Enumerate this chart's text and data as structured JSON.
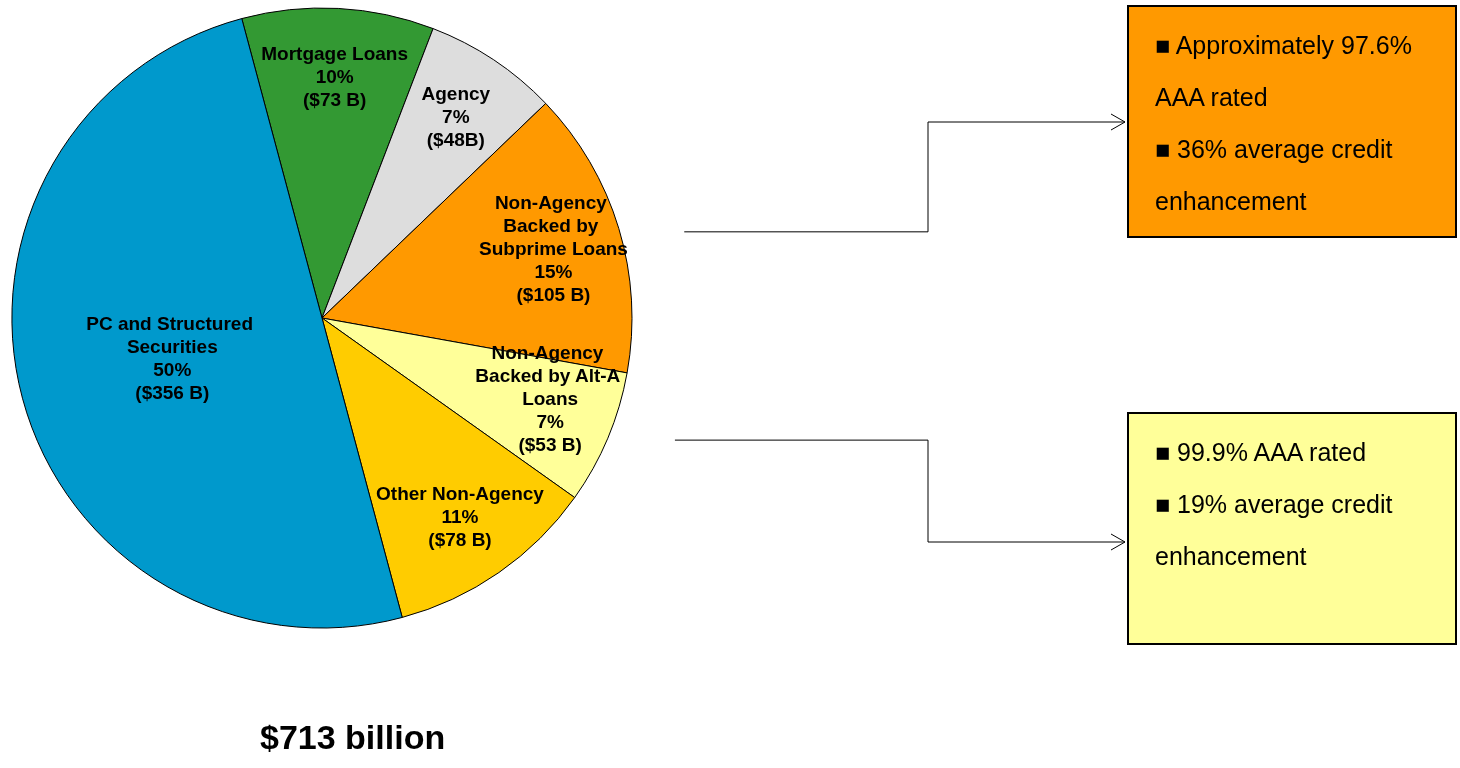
{
  "chart_data": {
    "type": "pie",
    "title": "$713 billion",
    "categories": [
      "Mortgage Loans",
      "Agency",
      "Non-Agency Backed by Subprime Loans",
      "Non-Agency Backed by Alt-A Loans",
      "Other Non-Agency",
      "PC and Structured Securities"
    ],
    "values": [
      10,
      7,
      15,
      7,
      11,
      50
    ],
    "value_labels": [
      "10%\n($73 B)",
      "7%\n($48B)",
      "15%\n($105 B)",
      "7%\n($53 B)",
      "11%\n($78 B)",
      "50%\n($356 B)"
    ],
    "colors": [
      "#339933",
      "#dddddd",
      "#ff9900",
      "#ffff99",
      "#ffcc00",
      "#0099cc"
    ],
    "annotations": [
      {
        "text": "■ Approximately 97.6% AAA rated\n■ 36% average credit enhancement",
        "x": "Non-Agency Backed by Subprime Loans"
      },
      {
        "text": "■ 99.9% AAA rated\n■ 19% average credit enhancement",
        "x": "Non-Agency Backed by Alt-A Loans"
      }
    ]
  }
}
